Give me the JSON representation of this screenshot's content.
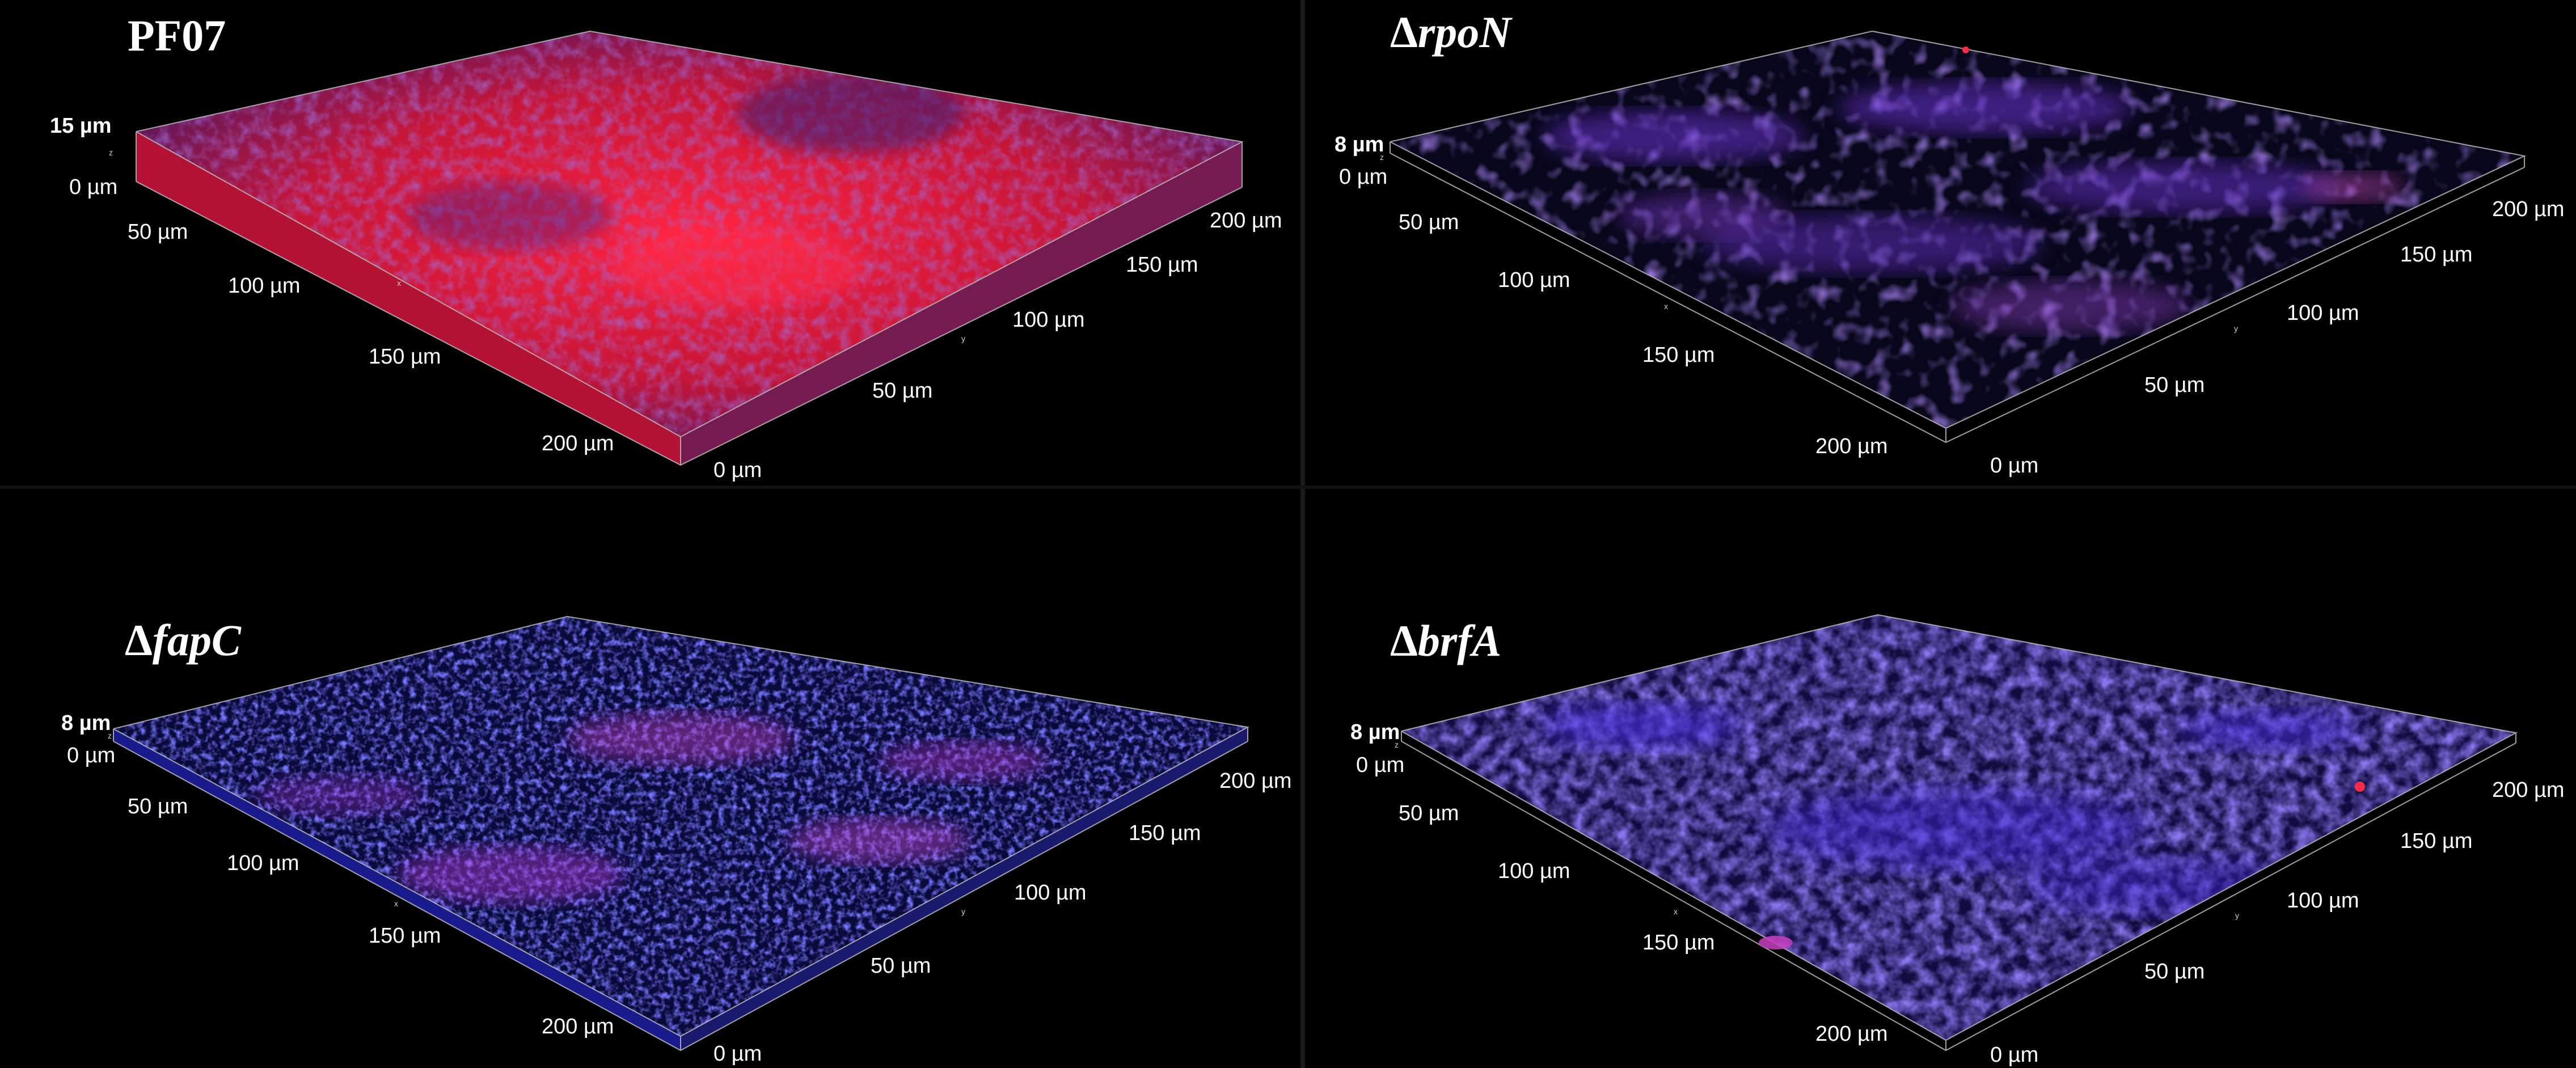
{
  "panels": [
    {
      "title_main": "PF07",
      "title_gene": "",
      "z_top": "15 µm",
      "z_zero": "0 µm",
      "x_ticks": [
        "50 µm",
        "100 µm",
        "150 µm",
        "200 µm"
      ],
      "y_ticks": [
        "0 µm",
        "50 µm",
        "100 µm",
        "150 µm",
        "200 µm"
      ],
      "axis_letters": {
        "x": "x",
        "y": "y",
        "z": "z"
      },
      "dominant_stain": "red",
      "colors": {
        "primary": "#ff1a3a",
        "secondary": "#5a2fa0"
      }
    },
    {
      "title_main": "Δ",
      "title_gene": "rpoN",
      "z_top": "8 µm",
      "z_zero": "0 µm",
      "x_ticks": [
        "50 µm",
        "100 µm",
        "150 µm",
        "200 µm"
      ],
      "y_ticks": [
        "0 µm",
        "50 µm",
        "100 µm",
        "150 µm",
        "200 µm"
      ],
      "axis_letters": {
        "x": "x",
        "y": "y",
        "z": "z"
      },
      "dominant_stain": "blue",
      "colors": {
        "primary": "#5a34c8",
        "secondary": "#b04ab0"
      }
    },
    {
      "title_main": "Δ",
      "title_gene": "fapC",
      "z_top": "8 µm",
      "z_zero": "0 µm",
      "x_ticks": [
        "50 µm",
        "100 µm",
        "150 µm",
        "200 µm"
      ],
      "y_ticks": [
        "0 µm",
        "50 µm",
        "100 µm",
        "150 µm",
        "200 µm"
      ],
      "axis_letters": {
        "x": "x",
        "y": "y",
        "z": "z"
      },
      "dominant_stain": "blue",
      "colors": {
        "primary": "#2b2cff",
        "secondary": "#b43ad0"
      }
    },
    {
      "title_main": "Δ",
      "title_gene": "brfA",
      "z_top": "8 µm",
      "z_zero": "0 µm",
      "x_ticks": [
        "50 µm",
        "100 µm",
        "150 µm",
        "200 µm"
      ],
      "y_ticks": [
        "0 µm",
        "50 µm",
        "100 µm",
        "150 µm",
        "200 µm"
      ],
      "axis_letters": {
        "x": "x",
        "y": "y",
        "z": "z"
      },
      "dominant_stain": "blue",
      "colors": {
        "primary": "#3a2ad8",
        "secondary": "#7a3cc0"
      }
    }
  ]
}
